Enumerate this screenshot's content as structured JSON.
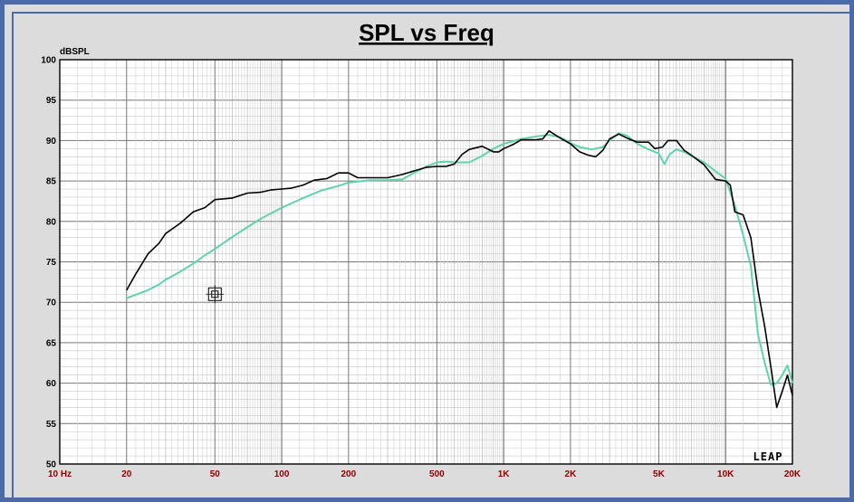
{
  "chart_data": {
    "type": "line",
    "title": "SPL vs Freq",
    "ylabel": "dBSPL",
    "xscale": "log",
    "xlim": [
      10,
      20000
    ],
    "ylim": [
      50,
      100
    ],
    "grid": true,
    "y_ticks": [
      "100",
      "95",
      "90",
      "85",
      "80",
      "75",
      "70",
      "65",
      "60",
      "55",
      "50"
    ],
    "x_ticks": [
      {
        "value": 10,
        "label": "10 Hz"
      },
      {
        "value": 20,
        "label": "20"
      },
      {
        "value": 50,
        "label": "50"
      },
      {
        "value": 100,
        "label": "100"
      },
      {
        "value": 200,
        "label": "200"
      },
      {
        "value": 500,
        "label": "500"
      },
      {
        "value": 1000,
        "label": "1K"
      },
      {
        "value": 2000,
        "label": "2K"
      },
      {
        "value": 5000,
        "label": "5K"
      },
      {
        "value": 10000,
        "label": "10K"
      },
      {
        "value": 20000,
        "label": "20K"
      }
    ],
    "logo": "LEAP",
    "cursor_marker": {
      "x": 50,
      "y": 71
    },
    "series": [
      {
        "color": "#000000",
        "points": [
          [
            20,
            71.5
          ],
          [
            22,
            73.5
          ],
          [
            25,
            76
          ],
          [
            28,
            77.3
          ],
          [
            30,
            78.5
          ],
          [
            35,
            79.8
          ],
          [
            40,
            81.2
          ],
          [
            45,
            81.7
          ],
          [
            50,
            82.7
          ],
          [
            55,
            82.8
          ],
          [
            60,
            82.9
          ],
          [
            70,
            83.5
          ],
          [
            80,
            83.6
          ],
          [
            90,
            83.9
          ],
          [
            100,
            84
          ],
          [
            110,
            84.1
          ],
          [
            125,
            84.5
          ],
          [
            140,
            85.1
          ],
          [
            160,
            85.3
          ],
          [
            180,
            86
          ],
          [
            200,
            86
          ],
          [
            220,
            85.4
          ],
          [
            250,
            85.4
          ],
          [
            300,
            85.4
          ],
          [
            350,
            85.8
          ],
          [
            400,
            86.3
          ],
          [
            450,
            86.7
          ],
          [
            500,
            86.8
          ],
          [
            550,
            86.8
          ],
          [
            600,
            87.1
          ],
          [
            650,
            88.3
          ],
          [
            700,
            88.9
          ],
          [
            800,
            89.3
          ],
          [
            900,
            88.6
          ],
          [
            950,
            88.6
          ],
          [
            1000,
            89
          ],
          [
            1100,
            89.5
          ],
          [
            1200,
            90.1
          ],
          [
            1300,
            90.1
          ],
          [
            1400,
            90.1
          ],
          [
            1500,
            90.2
          ],
          [
            1600,
            91.2
          ],
          [
            1800,
            90.3
          ],
          [
            2000,
            89.6
          ],
          [
            2200,
            88.6
          ],
          [
            2400,
            88.2
          ],
          [
            2600,
            88
          ],
          [
            2800,
            88.8
          ],
          [
            3000,
            90.2
          ],
          [
            3300,
            90.8
          ],
          [
            3600,
            90.3
          ],
          [
            4000,
            89.8
          ],
          [
            4500,
            89.8
          ],
          [
            4800,
            89
          ],
          [
            5200,
            89.2
          ],
          [
            5500,
            90
          ],
          [
            6000,
            90
          ],
          [
            6500,
            88.8
          ],
          [
            7000,
            88.2
          ],
          [
            8000,
            87
          ],
          [
            9000,
            85.2
          ],
          [
            10000,
            85
          ],
          [
            10500,
            84.5
          ],
          [
            11000,
            81.2
          ],
          [
            12000,
            80.8
          ],
          [
            13000,
            78
          ],
          [
            14000,
            71.5
          ],
          [
            15000,
            67
          ],
          [
            16000,
            62
          ],
          [
            17000,
            57
          ],
          [
            18000,
            59
          ],
          [
            19000,
            61
          ],
          [
            20000,
            58.5
          ]
        ]
      },
      {
        "color": "#5fd4a8",
        "points": [
          [
            20,
            70.5
          ],
          [
            25,
            71.5
          ],
          [
            28,
            72.2
          ],
          [
            30,
            72.8
          ],
          [
            35,
            73.8
          ],
          [
            40,
            74.8
          ],
          [
            45,
            75.8
          ],
          [
            50,
            76.6
          ],
          [
            60,
            78.1
          ],
          [
            70,
            79.3
          ],
          [
            80,
            80.3
          ],
          [
            100,
            81.7
          ],
          [
            125,
            82.9
          ],
          [
            150,
            83.8
          ],
          [
            175,
            84.3
          ],
          [
            200,
            84.8
          ],
          [
            250,
            85.1
          ],
          [
            300,
            85.1
          ],
          [
            350,
            85.2
          ],
          [
            400,
            86.1
          ],
          [
            450,
            86.8
          ],
          [
            500,
            87.3
          ],
          [
            550,
            87.4
          ],
          [
            600,
            87.3
          ],
          [
            700,
            87.3
          ],
          [
            800,
            88.1
          ],
          [
            900,
            89
          ],
          [
            1000,
            89.6
          ],
          [
            1200,
            90.2
          ],
          [
            1400,
            90.5
          ],
          [
            1600,
            90.7
          ],
          [
            1800,
            90.4
          ],
          [
            2000,
            89.7
          ],
          [
            2200,
            89.2
          ],
          [
            2500,
            88.9
          ],
          [
            2800,
            89.2
          ],
          [
            3000,
            90
          ],
          [
            3300,
            90.9
          ],
          [
            3600,
            90.6
          ],
          [
            4000,
            89.6
          ],
          [
            4500,
            88.9
          ],
          [
            5000,
            88.4
          ],
          [
            5300,
            87.1
          ],
          [
            5600,
            88.3
          ],
          [
            6000,
            88.9
          ],
          [
            6500,
            88.6
          ],
          [
            7000,
            88.1
          ],
          [
            8000,
            87.3
          ],
          [
            9000,
            86.2
          ],
          [
            10000,
            85.3
          ],
          [
            11000,
            82
          ],
          [
            12000,
            78.3
          ],
          [
            13000,
            74.5
          ],
          [
            14000,
            66
          ],
          [
            15000,
            62.5
          ],
          [
            16000,
            59.8
          ],
          [
            17000,
            60
          ],
          [
            18000,
            61
          ],
          [
            19000,
            62.2
          ],
          [
            20000,
            60
          ]
        ]
      }
    ]
  }
}
